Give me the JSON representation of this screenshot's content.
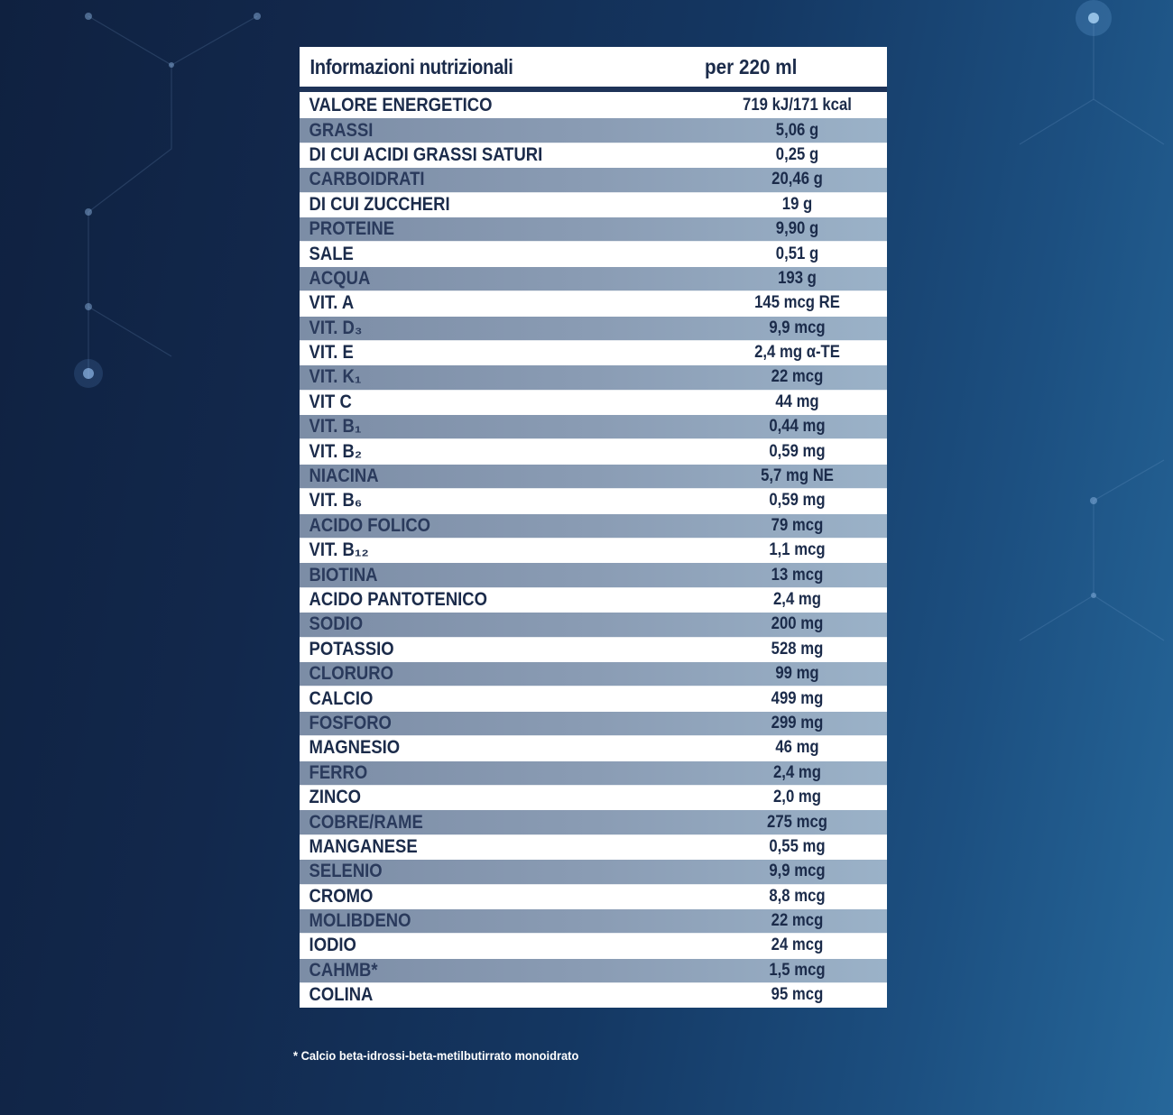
{
  "table": {
    "header_label": "Informazioni nutrizionali",
    "header_value": "per 220 ml",
    "rows": [
      {
        "name": "VALORE ENERGETICO",
        "value": "719 kJ/171 kcal"
      },
      {
        "name": "GRASSI",
        "value": "5,06 g"
      },
      {
        "name": "DI CUI ACIDI GRASSI SATURI",
        "value": "0,25 g"
      },
      {
        "name": "CARBOIDRATI",
        "value": "20,46 g"
      },
      {
        "name": "DI CUI ZUCCHERI",
        "value": "19 g"
      },
      {
        "name": "PROTEINE",
        "value": "9,90 g"
      },
      {
        "name": "SALE",
        "value": "0,51 g"
      },
      {
        "name": "ACQUA",
        "value": "193 g"
      },
      {
        "name": "VIT. A",
        "value": "145 mcg RE"
      },
      {
        "name": "VIT. D₃",
        "value": "9,9 mcg"
      },
      {
        "name": "VIT. E",
        "value": "2,4 mg α-TE"
      },
      {
        "name": "VIT. K₁",
        "value": "22 mcg"
      },
      {
        "name": "VIT C",
        "value": "44 mg"
      },
      {
        "name": "VIT. B₁",
        "value": "0,44 mg"
      },
      {
        "name": "VIT. B₂",
        "value": "0,59 mg"
      },
      {
        "name": "NIACINA",
        "value": "5,7 mg NE"
      },
      {
        "name": "VIT. B₆",
        "value": "0,59 mg"
      },
      {
        "name": "ACIDO FOLICO",
        "value": "79 mcg"
      },
      {
        "name": "VIT. B₁₂",
        "value": "1,1 mcg"
      },
      {
        "name": "BIOTINA",
        "value": "13 mcg"
      },
      {
        "name": "ACIDO PANTOTENICO",
        "value": "2,4 mg"
      },
      {
        "name": "SODIO",
        "value": "200 mg"
      },
      {
        "name": "POTASSIO",
        "value": "528 mg"
      },
      {
        "name": "CLORURO",
        "value": "99 mg"
      },
      {
        "name": "CALCIO",
        "value": "499 mg"
      },
      {
        "name": "FOSFORO",
        "value": "299 mg"
      },
      {
        "name": "MAGNESIO",
        "value": "46 mg"
      },
      {
        "name": "FERRO",
        "value": "2,4 mg"
      },
      {
        "name": "ZINCO",
        "value": "2,0 mg"
      },
      {
        "name": "COBRE/RAME",
        "value": "275 mcg"
      },
      {
        "name": "MANGANESE",
        "value": "0,55 mg"
      },
      {
        "name": "SELENIO",
        "value": "9,9 mcg"
      },
      {
        "name": "CROMO",
        "value": "8,8 mcg"
      },
      {
        "name": "MOLIBDENO",
        "value": "22 mcg"
      },
      {
        "name": "IODIO",
        "value": "24 mcg"
      },
      {
        "name": "CAHMB*",
        "value": "1,5 mcg"
      },
      {
        "name": "COLINA",
        "value": "95 mcg"
      }
    ]
  },
  "footnote": "* Calcio beta-idrossi-beta-metilbutirrato monoidrato",
  "colors": {
    "text_dark": "#1b2b4a",
    "row_alt": "#8a9cb4",
    "background_dark": "#0f2140",
    "background_light": "#26679a"
  }
}
